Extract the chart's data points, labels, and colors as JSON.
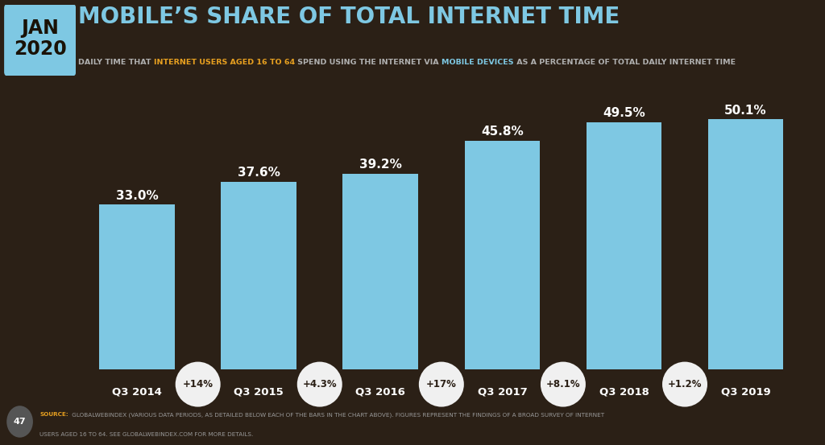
{
  "title": "MOBILE’S SHARE OF TOTAL INTERNET TIME",
  "subtitle_parts": [
    {
      "text": "DAILY TIME THAT ",
      "color": "#b0b0b0"
    },
    {
      "text": "INTERNET USERS AGED 16 TO 64",
      "color": "#e8a020"
    },
    {
      "text": " SPEND USING THE INTERNET VIA ",
      "color": "#b0b0b0"
    },
    {
      "text": "MOBILE DEVICES",
      "color": "#7ec8e3"
    },
    {
      "text": " AS A PERCENTAGE OF TOTAL DAILY INTERNET TIME",
      "color": "#b0b0b0"
    }
  ],
  "jan_year": "JAN\n2020",
  "categories": [
    "Q3 2014",
    "Q3 2015",
    "Q3 2016",
    "Q3 2017",
    "Q3 2018",
    "Q3 2019"
  ],
  "values": [
    33.0,
    37.6,
    39.2,
    45.8,
    49.5,
    50.1
  ],
  "value_labels": [
    "33.0%",
    "37.6%",
    "39.2%",
    "45.8%",
    "49.5%",
    "50.1%"
  ],
  "change_labels": [
    "+14%",
    "+4.3%",
    "+17%",
    "+8.1%",
    "+1.2%",
    null
  ],
  "bar_color": "#7ec8e3",
  "bg_color": "#2b2016",
  "text_color": "#ffffff",
  "circle_bg": "#f0f0f0",
  "circle_text": "#2b2016",
  "jan_box_color": "#7ec8e3",
  "jan_text_color": "#1a1206",
  "title_color": "#7ec8e3",
  "ylim": [
    0,
    58
  ],
  "source_color": "#e8a020",
  "page_circle_color": "#555555"
}
